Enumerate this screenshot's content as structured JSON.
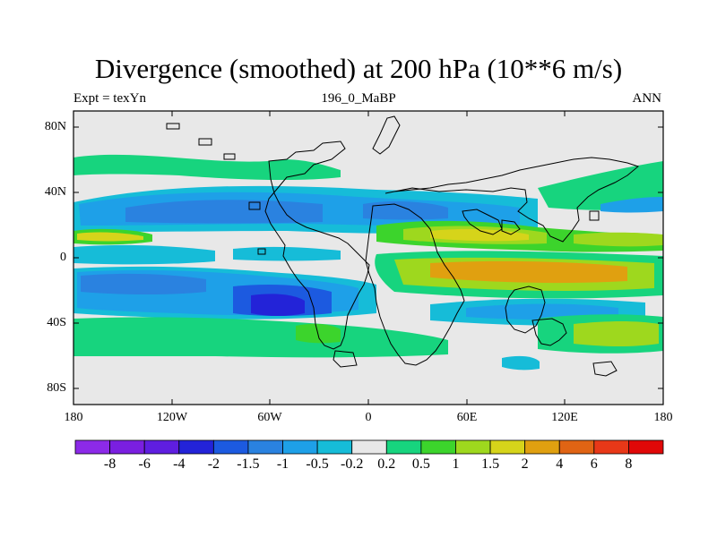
{
  "title": "Divergence (smoothed) at 200 hPa (10**6 m/s)",
  "subtitle_left": "Expt = texYn",
  "subtitle_center": "196_0_MaBP",
  "subtitle_right": "ANN",
  "lat_ticks": [
    "80N",
    "40N",
    "0",
    "40S",
    "80S"
  ],
  "lon_ticks": [
    "180",
    "120W",
    "60W",
    "0",
    "60E",
    "120E",
    "180"
  ],
  "colorbar": {
    "labels": [
      "-8",
      "-6",
      "-4",
      "-2",
      "-1.5",
      "-1",
      "-0.5",
      "-0.2",
      "0.2",
      "0.5",
      "1",
      "1.5",
      "2",
      "4",
      "6",
      "8"
    ],
    "colors": [
      "#8c2ae8",
      "#7a1fe0",
      "#5f1ee0",
      "#2323d8",
      "#1c5ae0",
      "#2a82e0",
      "#1ea0e8",
      "#16bcd8",
      "#e8e8e8",
      "#17d47e",
      "#3cd42c",
      "#9ed81e",
      "#d6d41a",
      "#e0a010",
      "#e06414",
      "#e83818",
      "#e00808"
    ]
  },
  "map_data": {
    "type": "filled-contour",
    "variable": "Divergence (smoothed) at 200 hPa",
    "units": "10**6 m/s",
    "lon_range": [
      -180,
      180
    ],
    "lat_range": [
      -90,
      90
    ]
  }
}
